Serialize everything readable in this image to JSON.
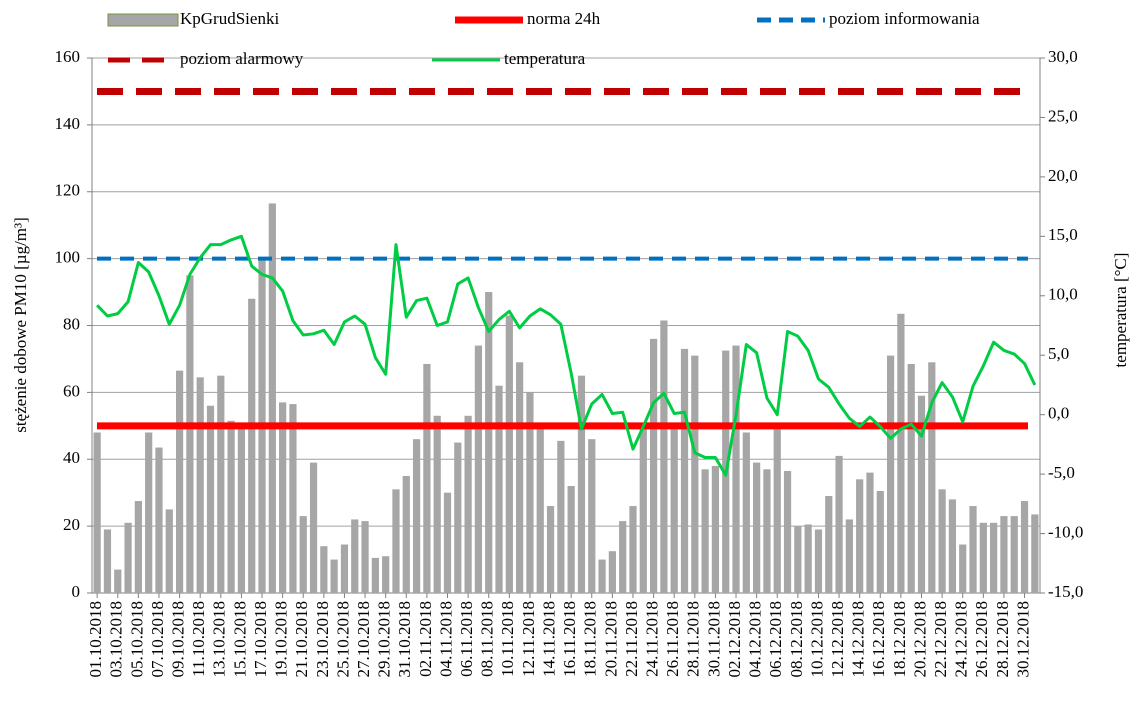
{
  "chart_data": {
    "type": "bar",
    "y_label": "stężenie dobowe PM10 [µg/m³]",
    "y2_label": "temperatura [°C]",
    "categories": [
      "01.10.2018",
      null,
      "03.10.2018",
      null,
      "05.10.2018",
      null,
      "07.10.2018",
      null,
      "09.10.2018",
      null,
      "11.10.2018",
      null,
      "13.10.2018",
      null,
      "15.10.2018",
      null,
      "17.10.2018",
      null,
      "19.10.2018",
      null,
      "21.10.2018",
      null,
      "23.10.2018",
      null,
      "25.10.2018",
      null,
      "27.10.2018",
      null,
      "29.10.2018",
      null,
      "31.10.2018",
      null,
      "02.11.2018",
      null,
      "04.11.2018",
      null,
      "06.11.2018",
      null,
      "08.11.2018",
      null,
      "10.11.2018",
      null,
      "12.11.2018",
      null,
      "14.11.2018",
      null,
      "16.11.2018",
      null,
      "18.11.2018",
      null,
      "20.11.2018",
      null,
      "22.11.2018",
      null,
      "24.11.2018",
      null,
      "26.11.2018",
      null,
      "28.11.2018",
      null,
      "30.11.2018",
      null,
      "02.12.2018",
      null,
      "04.12.2018",
      null,
      "06.12.2018",
      null,
      "08.12.2018",
      null,
      "10.12.2018",
      null,
      "12.12.2018",
      null,
      "14.12.2018",
      null,
      "16.12.2018",
      null,
      "18.12.2018",
      null,
      "20.12.2018",
      null,
      "22.12.2018",
      null,
      "24.12.2018",
      null,
      "26.12.2018",
      null,
      "28.12.2018",
      null,
      "30.12.2018",
      null
    ],
    "series": [
      {
        "name": "KpGrudSienki",
        "kind": "bar",
        "color": "#a6a6a6",
        "values": [
          48,
          19,
          7,
          21,
          27.5,
          48,
          43.5,
          25,
          66.5,
          95,
          64.5,
          56,
          65,
          51.5,
          51,
          88,
          100,
          116.5,
          57,
          56.5,
          23,
          39,
          14,
          10,
          14.5,
          22,
          21.5,
          10.5,
          11,
          31,
          35,
          46,
          68.5,
          53,
          30,
          45,
          53,
          74,
          90,
          62,
          83,
          69,
          60,
          50,
          26,
          45.5,
          32,
          65,
          46,
          10,
          12.5,
          21.5,
          26,
          50,
          76,
          81.5,
          50,
          73,
          71,
          37,
          38,
          72.5,
          74,
          48,
          39,
          37,
          49,
          36.5,
          20,
          20.5,
          19,
          29,
          41,
          22,
          34,
          36,
          30.5,
          71,
          83.5,
          68.5,
          59,
          69,
          31,
          28,
          14.5,
          26,
          21,
          21,
          23,
          23,
          27.5,
          23.5
        ]
      },
      {
        "name": "norma 24h",
        "kind": "hline",
        "color": "#ff0000",
        "dash": "none",
        "value": 50
      },
      {
        "name": "poziom informowania",
        "kind": "hline",
        "color": "#0070c0",
        "dash": "dashed",
        "value": 100
      },
      {
        "name": "poziom alarmowy",
        "kind": "hline",
        "color": "#c00000",
        "dash": "dashed",
        "value": 150
      },
      {
        "name": "temperatura",
        "kind": "line",
        "color": "#00cc44",
        "axis": "y2",
        "values": [
          9.2,
          8.3,
          8.5,
          9.5,
          12.8,
          12,
          10,
          7.6,
          9.2,
          11.8,
          13.2,
          14.3,
          14.3,
          14.7,
          15,
          12.5,
          11.8,
          11.5,
          10.4,
          7.9,
          6.7,
          6.8,
          7.1,
          5.9,
          7.8,
          8.3,
          7.6,
          4.8,
          3.4,
          14.3,
          8.2,
          9.6,
          9.8,
          7.5,
          7.8,
          11,
          11.5,
          9,
          7,
          8,
          8.7,
          7.3,
          8.3,
          8.9,
          8.4,
          7.6,
          3.5,
          -1.2,
          0.9,
          1.7,
          0.1,
          0.2,
          -2.9,
          -1,
          1,
          1.8,
          0.1,
          0.2,
          -3.2,
          -3.6,
          -3.6,
          -5.1,
          0,
          5.9,
          5.2,
          1.4,
          0,
          7,
          6.6,
          5.4,
          3,
          2.3,
          0.9,
          -0.3,
          -1,
          -0.2,
          -1,
          -2,
          -1.2,
          -0.8,
          -1.8,
          1,
          2.7,
          1.5,
          -0.6,
          2.4,
          4.1,
          6.1,
          5.4,
          5.1,
          4.3,
          2.5
        ]
      }
    ],
    "ylim": [
      0,
      160
    ],
    "yticks": [
      0,
      20,
      40,
      60,
      80,
      100,
      120,
      140,
      160
    ],
    "y2lim": [
      -15,
      30
    ],
    "y2ticks": [
      {
        "value": -15,
        "label": "-15,0"
      },
      {
        "value": -10,
        "label": "-10,0"
      },
      {
        "value": -5,
        "label": "-5,0"
      },
      {
        "value": 0,
        "label": "0,0"
      },
      {
        "value": 5,
        "label": "5,0"
      },
      {
        "value": 10,
        "label": "10,0"
      },
      {
        "value": 15,
        "label": "15,0"
      },
      {
        "value": 20,
        "label": "20,0"
      },
      {
        "value": 25,
        "label": "25,0"
      },
      {
        "value": 30,
        "label": "30,0"
      }
    ],
    "grid": true,
    "legend": "top"
  }
}
